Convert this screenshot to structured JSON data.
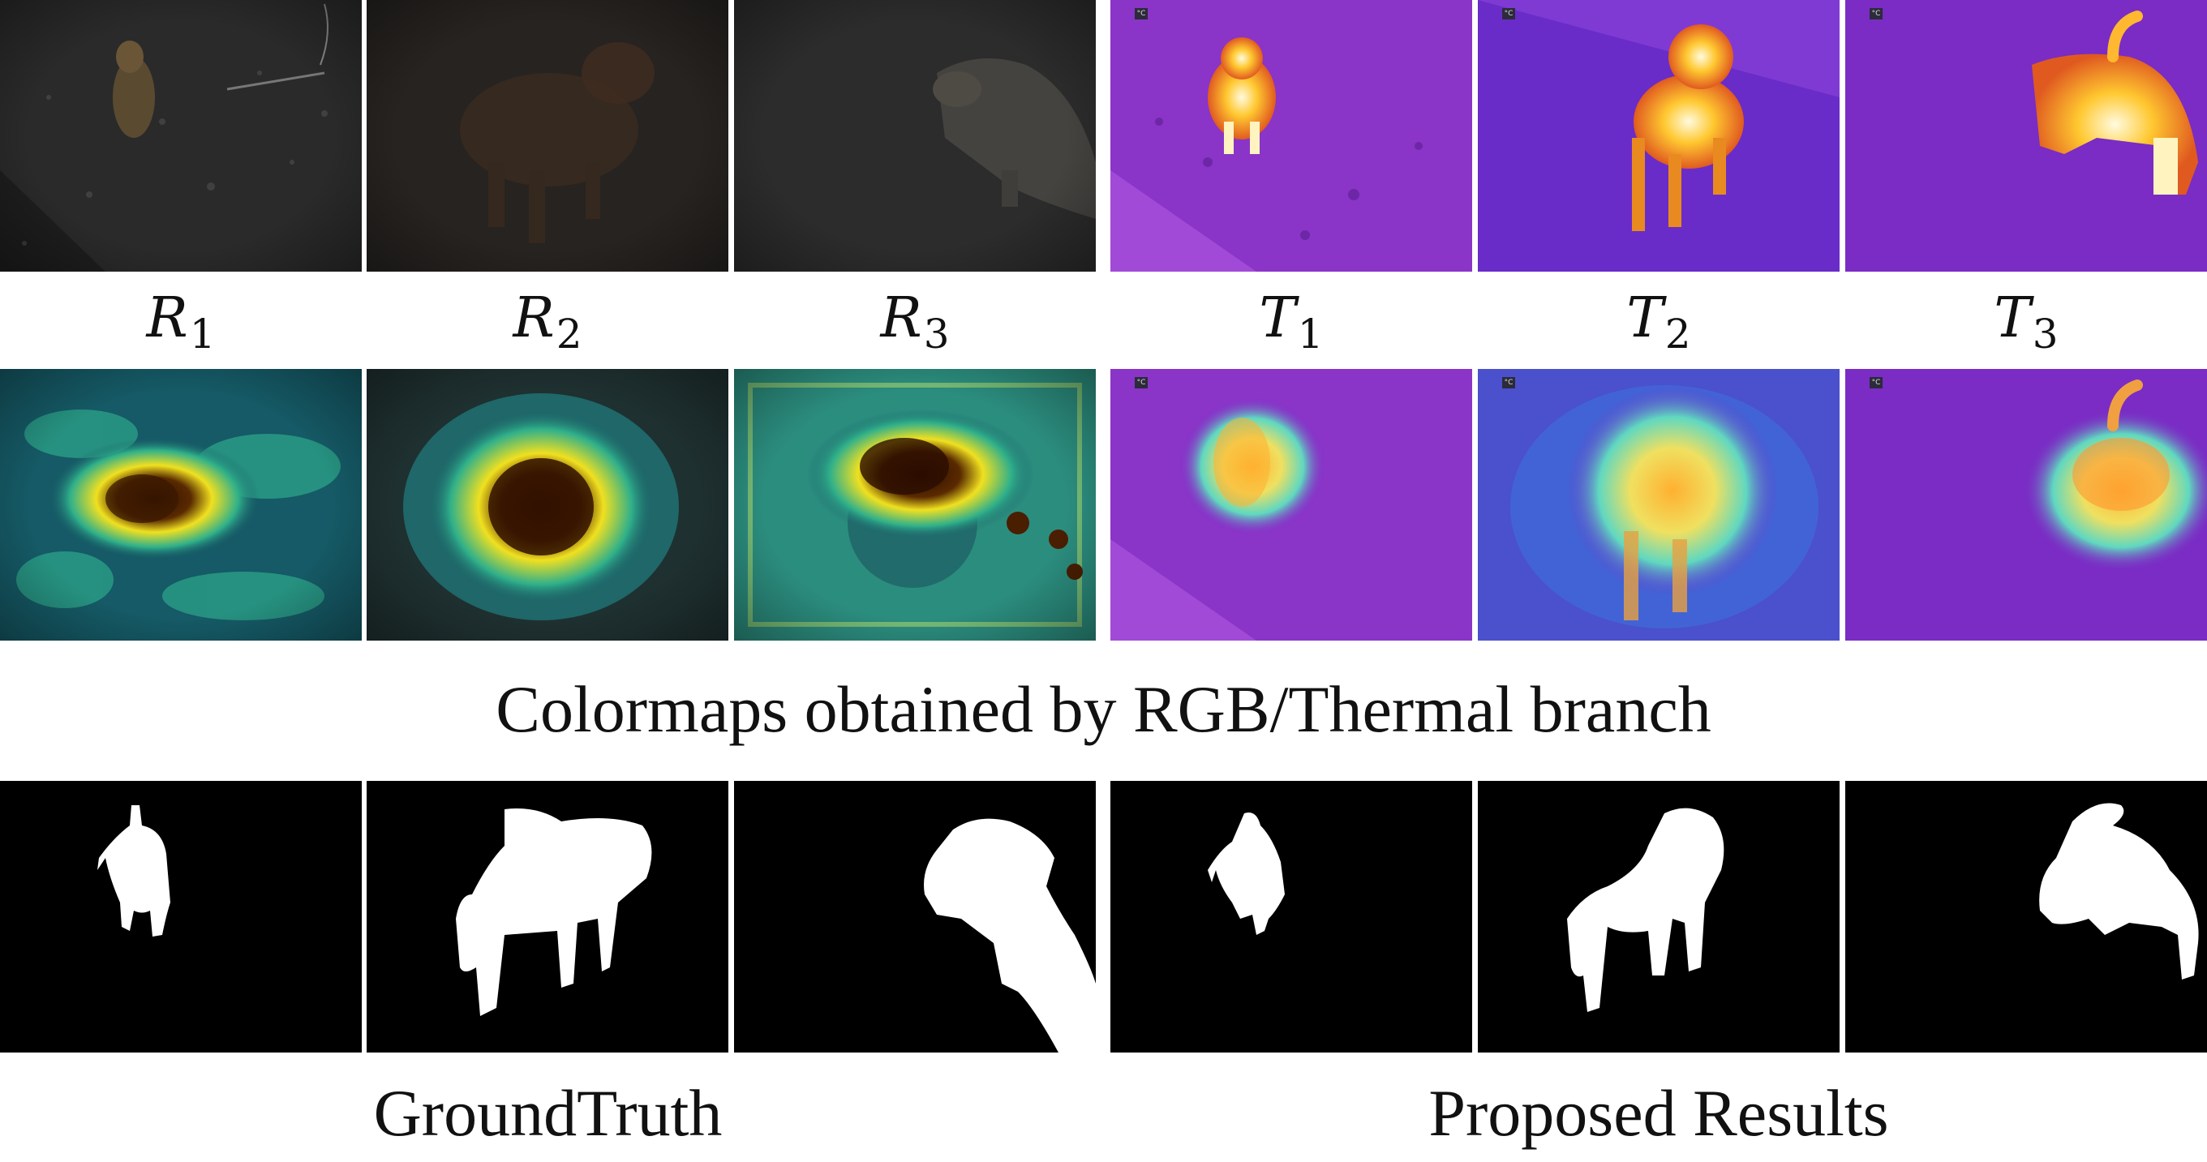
{
  "labels": [
    {
      "base": "R",
      "sub": "1"
    },
    {
      "base": "R",
      "sub": "2"
    },
    {
      "base": "R",
      "sub": "3"
    },
    {
      "base": "T",
      "sub": "1"
    },
    {
      "base": "T",
      "sub": "2"
    },
    {
      "base": "T",
      "sub": "3"
    }
  ],
  "captions": {
    "colormaps": "Colormaps obtained by RGB/Thermal branch",
    "ground_truth": "GroundTruth",
    "proposed": "Proposed Results"
  },
  "thermal_badge": "°C",
  "colors": {
    "rgb_dark": "#262626",
    "thermal_bg": "#7a2cc4",
    "thermal_hot": "#ffd24a",
    "heat_cold": "#1e8a8c",
    "heat_mid": "#e8e020",
    "heat_hot": "#3a1500",
    "mask_bg": "#000000",
    "mask_fg": "#ffffff"
  }
}
